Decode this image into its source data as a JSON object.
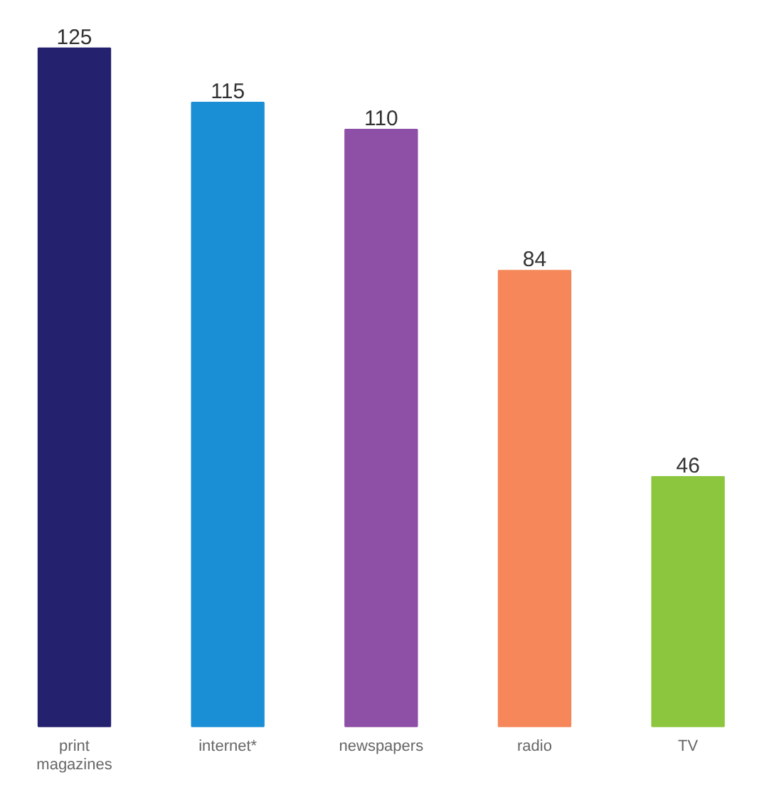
{
  "chart_data": {
    "type": "bar",
    "categories": [
      "print\nmagazines",
      "internet*",
      "newspapers",
      "radio",
      "TV"
    ],
    "values": [
      125,
      115,
      110,
      84,
      46
    ],
    "colors": [
      "#24216e",
      "#1b8fd6",
      "#8e4fa6",
      "#f5875a",
      "#8cc63f"
    ],
    "data_labels": true
  }
}
